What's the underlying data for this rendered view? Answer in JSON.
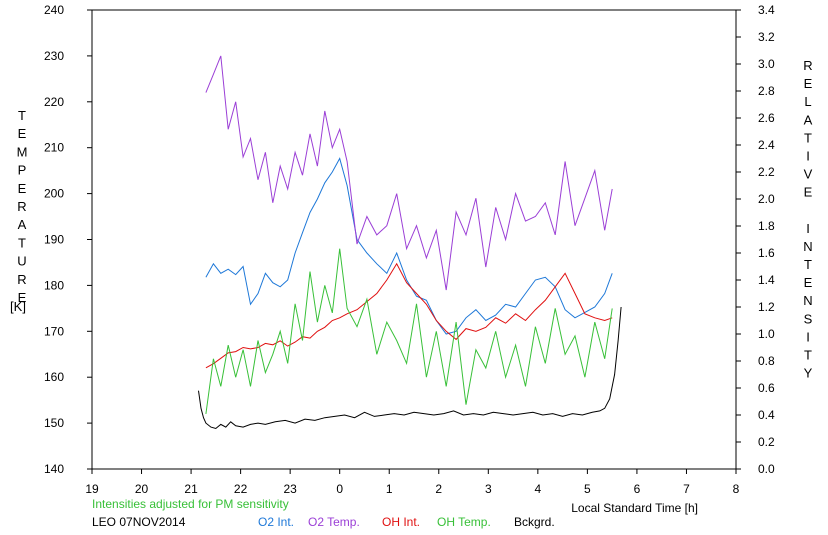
{
  "chart_data": {
    "type": "line",
    "station": "LEO 07NOV2014",
    "note": "Intensities adjusted for PM sensitivity",
    "xlabel": "Local Standard Time [h]",
    "ylabel_left": "TEMPERATURE",
    "ylabel_left_unit": "[K]",
    "ylabel_right": "RELATIVE INTENSITY",
    "x_ticks": [
      19,
      20,
      21,
      22,
      23,
      0,
      1,
      2,
      3,
      4,
      5,
      6,
      7,
      8
    ],
    "y_left_ticks": [
      140,
      150,
      160,
      170,
      180,
      190,
      200,
      210,
      220,
      230,
      240
    ],
    "y_right_ticks": [
      "0.0",
      "0.2",
      "0.4",
      "0.6",
      "0.8",
      "1.0",
      "1.2",
      "1.4",
      "1.6",
      "1.8",
      "2.0",
      "2.2",
      "2.4",
      "2.6",
      "2.8",
      "3.0",
      "3.2",
      "3.4"
    ],
    "x_range": [
      19,
      32
    ],
    "y_left_range": [
      140,
      240
    ],
    "y_right_range": [
      0,
      3.4
    ],
    "colors": {
      "o2_int": "#1e78d8",
      "o2_temp": "#9b3fd6",
      "oh_int": "#e01010",
      "oh_temp": "#38c038",
      "bckgrd": "#000000",
      "note": "#38c038"
    },
    "series": [
      {
        "name": "O2 Int.",
        "axis": "right",
        "x": [
          21.3,
          21.45,
          21.6,
          21.75,
          21.9,
          22.05,
          22.2,
          22.35,
          22.5,
          22.65,
          22.8,
          22.95,
          23.1,
          23.25,
          23.4,
          23.55,
          23.7,
          23.85,
          24.0,
          24.15,
          24.35,
          24.55,
          24.75,
          24.95,
          25.15,
          25.35,
          25.55,
          25.75,
          25.95,
          26.15,
          26.35,
          26.55,
          26.75,
          26.95,
          27.15,
          27.35,
          27.55,
          27.75,
          27.95,
          28.15,
          28.35,
          28.55,
          28.75,
          28.95,
          29.15,
          29.35,
          29.5
        ],
        "values": [
          1.42,
          1.52,
          1.45,
          1.48,
          1.44,
          1.5,
          1.22,
          1.3,
          1.45,
          1.38,
          1.35,
          1.4,
          1.6,
          1.75,
          1.9,
          2.0,
          2.12,
          2.2,
          2.3,
          2.1,
          1.7,
          1.6,
          1.52,
          1.45,
          1.6,
          1.4,
          1.28,
          1.25,
          1.1,
          1.0,
          1.02,
          1.12,
          1.18,
          1.1,
          1.14,
          1.22,
          1.2,
          1.3,
          1.4,
          1.42,
          1.35,
          1.18,
          1.12,
          1.16,
          1.2,
          1.3,
          1.45
        ]
      },
      {
        "name": "O2 Temp.",
        "axis": "left",
        "x": [
          21.3,
          21.45,
          21.6,
          21.75,
          21.9,
          22.05,
          22.2,
          22.35,
          22.5,
          22.65,
          22.8,
          22.95,
          23.1,
          23.25,
          23.4,
          23.55,
          23.7,
          23.85,
          24.0,
          24.15,
          24.35,
          24.55,
          24.75,
          24.95,
          25.15,
          25.35,
          25.55,
          25.75,
          25.95,
          26.15,
          26.35,
          26.55,
          26.75,
          26.95,
          27.15,
          27.35,
          27.55,
          27.75,
          27.95,
          28.15,
          28.35,
          28.55,
          28.75,
          28.95,
          29.15,
          29.35,
          29.5
        ],
        "values": [
          222,
          226,
          230,
          214,
          220,
          208,
          212,
          203,
          209,
          198,
          206,
          201,
          209,
          204,
          213,
          206,
          218,
          210,
          214,
          207,
          189,
          195,
          191,
          193,
          200,
          188,
          193,
          186,
          192,
          179,
          196,
          191,
          199,
          184,
          197,
          190,
          200,
          194,
          195,
          198,
          191,
          207,
          193,
          199,
          205,
          192,
          201
        ]
      },
      {
        "name": "OH Int.",
        "axis": "right",
        "x": [
          21.3,
          21.45,
          21.6,
          21.75,
          21.9,
          22.05,
          22.2,
          22.35,
          22.5,
          22.65,
          22.8,
          22.95,
          23.1,
          23.25,
          23.4,
          23.55,
          23.7,
          23.85,
          24.0,
          24.15,
          24.35,
          24.55,
          24.75,
          24.95,
          25.15,
          25.35,
          25.55,
          25.75,
          25.95,
          26.15,
          26.35,
          26.55,
          26.75,
          26.95,
          27.15,
          27.35,
          27.55,
          27.75,
          27.95,
          28.15,
          28.35,
          28.55,
          28.75,
          28.95,
          29.15,
          29.35,
          29.5
        ],
        "values": [
          0.75,
          0.78,
          0.82,
          0.86,
          0.87,
          0.9,
          0.89,
          0.9,
          0.93,
          0.92,
          0.95,
          0.91,
          0.94,
          0.98,
          0.97,
          1.02,
          1.05,
          1.1,
          1.12,
          1.15,
          1.18,
          1.24,
          1.3,
          1.4,
          1.52,
          1.38,
          1.3,
          1.22,
          1.1,
          1.02,
          0.96,
          1.04,
          1.02,
          1.05,
          1.12,
          1.08,
          1.15,
          1.1,
          1.18,
          1.25,
          1.35,
          1.45,
          1.3,
          1.15,
          1.12,
          1.1,
          1.12
        ]
      },
      {
        "name": "OH Temp.",
        "axis": "left",
        "x": [
          21.3,
          21.45,
          21.6,
          21.75,
          21.9,
          22.05,
          22.2,
          22.35,
          22.5,
          22.65,
          22.8,
          22.95,
          23.1,
          23.25,
          23.4,
          23.55,
          23.7,
          23.85,
          24.0,
          24.15,
          24.35,
          24.55,
          24.75,
          24.95,
          25.15,
          25.35,
          25.55,
          25.75,
          25.95,
          26.15,
          26.35,
          26.55,
          26.75,
          26.95,
          27.15,
          27.35,
          27.55,
          27.75,
          27.95,
          28.15,
          28.35,
          28.55,
          28.75,
          28.95,
          29.15,
          29.35,
          29.5
        ],
        "values": [
          152,
          164,
          158,
          167,
          160,
          166,
          158,
          168,
          161,
          165,
          170,
          163,
          176,
          168,
          183,
          172,
          180,
          174,
          188,
          175,
          171,
          177,
          165,
          172,
          168,
          163,
          176,
          160,
          170,
          158,
          172,
          154,
          166,
          162,
          170,
          160,
          167,
          158,
          171,
          163,
          175,
          165,
          169,
          160,
          172,
          164,
          175
        ]
      },
      {
        "name": "Bckgrd.",
        "axis": "right",
        "x": [
          21.15,
          21.2,
          21.25,
          21.3,
          21.4,
          21.5,
          21.6,
          21.7,
          21.8,
          21.9,
          22.05,
          22.2,
          22.35,
          22.5,
          22.7,
          22.9,
          23.1,
          23.3,
          23.5,
          23.7,
          23.9,
          24.1,
          24.3,
          24.5,
          24.7,
          24.9,
          25.1,
          25.3,
          25.5,
          25.7,
          25.9,
          26.1,
          26.3,
          26.5,
          26.7,
          26.9,
          27.1,
          27.3,
          27.5,
          27.7,
          27.9,
          28.1,
          28.3,
          28.5,
          28.7,
          28.9,
          29.1,
          29.25,
          29.35,
          29.45,
          29.55,
          29.62,
          29.68
        ],
        "values": [
          0.58,
          0.45,
          0.38,
          0.34,
          0.31,
          0.3,
          0.33,
          0.31,
          0.35,
          0.32,
          0.31,
          0.33,
          0.34,
          0.33,
          0.35,
          0.36,
          0.34,
          0.37,
          0.36,
          0.38,
          0.39,
          0.4,
          0.38,
          0.42,
          0.39,
          0.4,
          0.41,
          0.4,
          0.42,
          0.41,
          0.4,
          0.41,
          0.43,
          0.4,
          0.41,
          0.4,
          0.42,
          0.41,
          0.4,
          0.41,
          0.42,
          0.4,
          0.41,
          0.39,
          0.41,
          0.4,
          0.42,
          0.43,
          0.45,
          0.52,
          0.7,
          0.95,
          1.2
        ]
      }
    ]
  }
}
